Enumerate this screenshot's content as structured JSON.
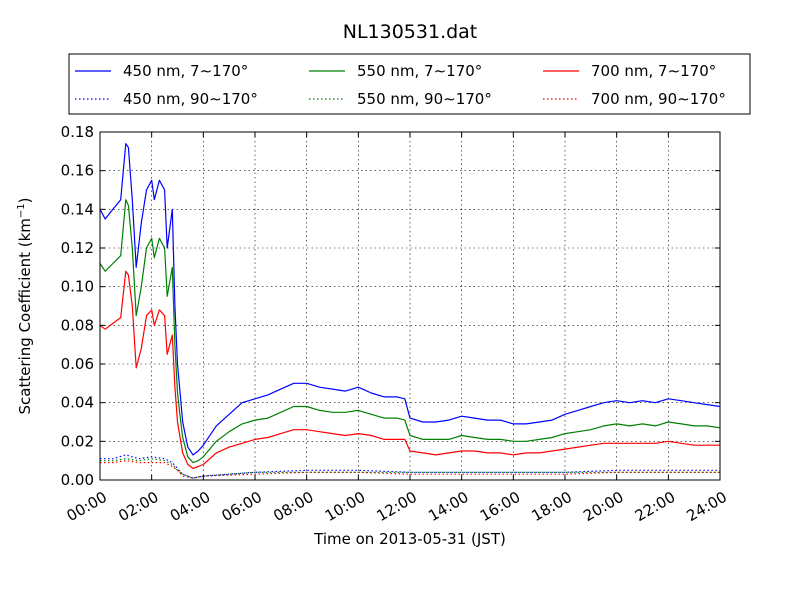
{
  "chart_data": {
    "type": "line",
    "title": "NL130531.dat",
    "xlabel": "Time on 2013-05-31 (JST)",
    "ylabel_main": "Scattering Coefficient (km",
    "ylabel_sup": "−1",
    "ylabel_end": ")",
    "xlim": [
      0,
      24
    ],
    "ylim": [
      0,
      0.18
    ],
    "grid": true,
    "legend_position": "top",
    "x_ticks": [
      {
        "value": 0,
        "label": "00:00"
      },
      {
        "value": 2,
        "label": "02:00"
      },
      {
        "value": 4,
        "label": "04:00"
      },
      {
        "value": 6,
        "label": "06:00"
      },
      {
        "value": 8,
        "label": "08:00"
      },
      {
        "value": 10,
        "label": "10:00"
      },
      {
        "value": 12,
        "label": "12:00"
      },
      {
        "value": 14,
        "label": "14:00"
      },
      {
        "value": 16,
        "label": "16:00"
      },
      {
        "value": 18,
        "label": "18:00"
      },
      {
        "value": 20,
        "label": "20:00"
      },
      {
        "value": 22,
        "label": "22:00"
      },
      {
        "value": 24,
        "label": "24:00"
      }
    ],
    "y_ticks": [
      {
        "value": 0,
        "label": "0.00"
      },
      {
        "value": 0.02,
        "label": "0.02"
      },
      {
        "value": 0.04,
        "label": "0.04"
      },
      {
        "value": 0.06,
        "label": "0.06"
      },
      {
        "value": 0.08,
        "label": "0.08"
      },
      {
        "value": 0.1,
        "label": "0.10"
      },
      {
        "value": 0.12,
        "label": "0.12"
      },
      {
        "value": 0.14,
        "label": "0.14"
      },
      {
        "value": 0.16,
        "label": "0.16"
      },
      {
        "value": 0.18,
        "label": "0.18"
      }
    ],
    "series": [
      {
        "name": "450 nm, 7∼170°",
        "color": "#0000ff",
        "style": "solid",
        "x": [
          0,
          0.2,
          0.5,
          0.8,
          1.0,
          1.1,
          1.25,
          1.4,
          1.6,
          1.8,
          2.0,
          2.1,
          2.3,
          2.5,
          2.6,
          2.8,
          2.9,
          3.0,
          3.1,
          3.2,
          3.4,
          3.6,
          3.8,
          4.0,
          4.5,
          5.0,
          5.5,
          6.0,
          6.5,
          7.0,
          7.5,
          8.0,
          8.5,
          9.0,
          9.5,
          10.0,
          10.5,
          11.0,
          11.5,
          11.8,
          12.0,
          12.5,
          13.0,
          13.5,
          14.0,
          14.5,
          15.0,
          15.5,
          16.0,
          16.5,
          17.0,
          17.5,
          18.0,
          18.5,
          19.0,
          19.5,
          20.0,
          20.5,
          21.0,
          21.5,
          22.0,
          22.5,
          23.0,
          23.5,
          24.0
        ],
        "values": [
          0.14,
          0.135,
          0.14,
          0.145,
          0.174,
          0.172,
          0.145,
          0.11,
          0.133,
          0.15,
          0.155,
          0.145,
          0.155,
          0.15,
          0.12,
          0.14,
          0.09,
          0.06,
          0.045,
          0.03,
          0.017,
          0.013,
          0.015,
          0.018,
          0.028,
          0.034,
          0.04,
          0.042,
          0.044,
          0.047,
          0.05,
          0.05,
          0.048,
          0.047,
          0.046,
          0.048,
          0.045,
          0.043,
          0.043,
          0.042,
          0.032,
          0.03,
          0.03,
          0.031,
          0.033,
          0.032,
          0.031,
          0.031,
          0.029,
          0.029,
          0.03,
          0.031,
          0.034,
          0.036,
          0.038,
          0.04,
          0.041,
          0.04,
          0.041,
          0.04,
          0.042,
          0.041,
          0.04,
          0.039,
          0.038
        ]
      },
      {
        "name": "550 nm, 7∼170°",
        "color": "#008000",
        "style": "solid",
        "x": [
          0,
          0.2,
          0.5,
          0.8,
          1.0,
          1.1,
          1.25,
          1.4,
          1.6,
          1.8,
          2.0,
          2.1,
          2.3,
          2.5,
          2.6,
          2.8,
          2.9,
          3.0,
          3.1,
          3.2,
          3.4,
          3.6,
          3.8,
          4.0,
          4.5,
          5.0,
          5.5,
          6.0,
          6.5,
          7.0,
          7.5,
          8.0,
          8.5,
          9.0,
          9.5,
          10.0,
          10.5,
          11.0,
          11.5,
          11.8,
          12.0,
          12.5,
          13.0,
          13.5,
          14.0,
          14.5,
          15.0,
          15.5,
          16.0,
          16.5,
          17.0,
          17.5,
          18.0,
          18.5,
          19.0,
          19.5,
          20.0,
          20.5,
          21.0,
          21.5,
          22.0,
          22.5,
          23.0,
          23.5,
          24.0
        ],
        "values": [
          0.112,
          0.108,
          0.112,
          0.116,
          0.145,
          0.142,
          0.12,
          0.085,
          0.1,
          0.12,
          0.125,
          0.115,
          0.125,
          0.12,
          0.095,
          0.11,
          0.07,
          0.045,
          0.033,
          0.022,
          0.012,
          0.009,
          0.01,
          0.012,
          0.02,
          0.025,
          0.029,
          0.031,
          0.032,
          0.035,
          0.038,
          0.038,
          0.036,
          0.035,
          0.035,
          0.036,
          0.034,
          0.032,
          0.032,
          0.031,
          0.023,
          0.021,
          0.021,
          0.021,
          0.023,
          0.022,
          0.021,
          0.021,
          0.02,
          0.02,
          0.021,
          0.022,
          0.024,
          0.025,
          0.026,
          0.028,
          0.029,
          0.028,
          0.029,
          0.028,
          0.03,
          0.029,
          0.028,
          0.028,
          0.027
        ]
      },
      {
        "name": "700 nm, 7∼170°",
        "color": "#ff0000",
        "style": "solid",
        "x": [
          0,
          0.2,
          0.5,
          0.8,
          1.0,
          1.1,
          1.25,
          1.4,
          1.6,
          1.8,
          2.0,
          2.1,
          2.3,
          2.5,
          2.6,
          2.8,
          2.9,
          3.0,
          3.1,
          3.2,
          3.4,
          3.6,
          3.8,
          4.0,
          4.5,
          5.0,
          5.5,
          6.0,
          6.5,
          7.0,
          7.5,
          8.0,
          8.5,
          9.0,
          9.5,
          10.0,
          10.5,
          11.0,
          11.5,
          11.8,
          12.0,
          12.5,
          13.0,
          13.5,
          14.0,
          14.5,
          15.0,
          15.5,
          16.0,
          16.5,
          17.0,
          17.5,
          18.0,
          18.5,
          19.0,
          19.5,
          20.0,
          20.5,
          21.0,
          21.5,
          22.0,
          22.5,
          23.0,
          23.5,
          24.0
        ],
        "values": [
          0.08,
          0.078,
          0.081,
          0.084,
          0.108,
          0.106,
          0.09,
          0.058,
          0.068,
          0.085,
          0.088,
          0.08,
          0.088,
          0.085,
          0.065,
          0.075,
          0.048,
          0.03,
          0.022,
          0.014,
          0.008,
          0.006,
          0.007,
          0.008,
          0.014,
          0.017,
          0.019,
          0.021,
          0.022,
          0.024,
          0.026,
          0.026,
          0.025,
          0.024,
          0.023,
          0.024,
          0.023,
          0.021,
          0.021,
          0.021,
          0.015,
          0.014,
          0.013,
          0.014,
          0.015,
          0.015,
          0.014,
          0.014,
          0.013,
          0.014,
          0.014,
          0.015,
          0.016,
          0.017,
          0.018,
          0.019,
          0.019,
          0.019,
          0.019,
          0.019,
          0.02,
          0.019,
          0.018,
          0.018,
          0.018
        ]
      },
      {
        "name": "450 nm, 90∼170°",
        "color": "#0000ff",
        "style": "dotted",
        "x": [
          0,
          0.5,
          1.0,
          1.5,
          2.0,
          2.5,
          2.8,
          3.0,
          3.2,
          3.6,
          4.0,
          6.0,
          8.0,
          10.0,
          12.0,
          14.0,
          16.0,
          18.0,
          20.0,
          22.0,
          24.0
        ],
        "values": [
          0.011,
          0.011,
          0.013,
          0.011,
          0.012,
          0.011,
          0.009,
          0.006,
          0.003,
          0.001,
          0.002,
          0.004,
          0.005,
          0.005,
          0.004,
          0.004,
          0.004,
          0.004,
          0.005,
          0.005,
          0.005
        ]
      },
      {
        "name": "550 nm, 90∼170°",
        "color": "#008000",
        "style": "dotted",
        "x": [
          0,
          0.5,
          1.0,
          1.5,
          2.0,
          2.5,
          2.8,
          3.0,
          3.2,
          3.6,
          4.0,
          6.0,
          8.0,
          10.0,
          12.0,
          14.0,
          16.0,
          18.0,
          20.0,
          22.0,
          24.0
        ],
        "values": [
          0.01,
          0.01,
          0.011,
          0.01,
          0.011,
          0.01,
          0.008,
          0.005,
          0.003,
          0.001,
          0.002,
          0.004,
          0.004,
          0.004,
          0.004,
          0.004,
          0.004,
          0.004,
          0.004,
          0.004,
          0.004
        ]
      },
      {
        "name": "700 nm, 90∼170°",
        "color": "#ff0000",
        "style": "dotted",
        "x": [
          0,
          0.5,
          1.0,
          1.5,
          2.0,
          2.5,
          2.8,
          3.0,
          3.2,
          3.6,
          4.0,
          6.0,
          8.0,
          10.0,
          12.0,
          14.0,
          16.0,
          18.0,
          20.0,
          22.0,
          24.0
        ],
        "values": [
          0.009,
          0.009,
          0.01,
          0.009,
          0.009,
          0.009,
          0.007,
          0.005,
          0.002,
          0.001,
          0.002,
          0.003,
          0.004,
          0.004,
          0.003,
          0.003,
          0.003,
          0.003,
          0.004,
          0.004,
          0.004
        ]
      }
    ]
  }
}
